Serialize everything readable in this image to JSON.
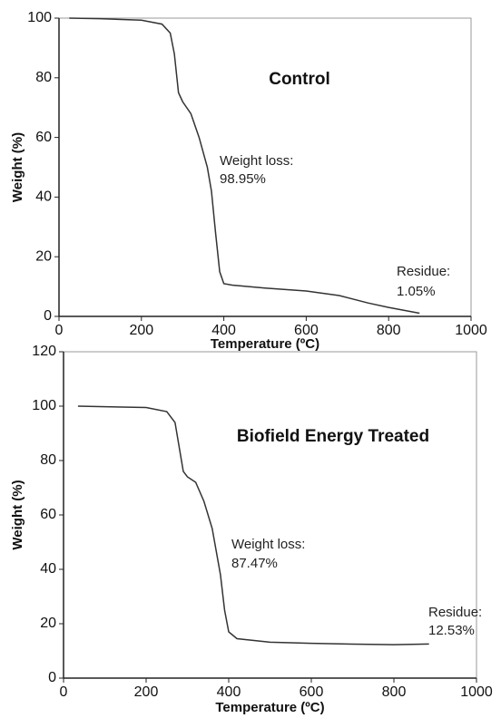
{
  "chart_data": [
    {
      "type": "line",
      "title": "Control",
      "x_label": "Temperature (ºC)",
      "y_label": "Weight (%)",
      "x": [
        25,
        100,
        200,
        250,
        270,
        280,
        290,
        300,
        320,
        340,
        360,
        370,
        380,
        390,
        400,
        420,
        500,
        600,
        680,
        750,
        800,
        875
      ],
      "series": [
        {
          "color": "#333333",
          "values": [
            100,
            99.8,
            99.3,
            98,
            95,
            88,
            75,
            72,
            68,
            60,
            50,
            42,
            28,
            15,
            11,
            10.5,
            9.5,
            8.5,
            7,
            4.5,
            3,
            1.05
          ]
        }
      ],
      "xlim": [
        0,
        1000
      ],
      "xticks": [
        0,
        200,
        400,
        600,
        800,
        1000
      ],
      "ylim": [
        0,
        100
      ],
      "yticks": [
        0,
        20,
        40,
        60,
        80,
        100
      ],
      "annotations": [
        "Weight loss:",
        "98.95%",
        "Residue:",
        "1.05%"
      ]
    },
    {
      "type": "line",
      "title": "Biofield Energy Treated",
      "x_label": "Temperature (ºC)",
      "y_label": "Weight (%)",
      "x": [
        35,
        100,
        200,
        250,
        270,
        280,
        290,
        300,
        320,
        340,
        360,
        380,
        390,
        400,
        420,
        500,
        600,
        700,
        800,
        885
      ],
      "series": [
        {
          "color": "#333333",
          "values": [
            100,
            99.8,
            99.5,
            98,
            94,
            85,
            76,
            74,
            72,
            65,
            55,
            38,
            25,
            17,
            14.5,
            13.2,
            12.8,
            12.5,
            12.3,
            12.53
          ]
        }
      ],
      "xlim": [
        0,
        1000
      ],
      "xticks": [
        0,
        200,
        400,
        600,
        800,
        1000
      ],
      "ylim": [
        0,
        120
      ],
      "yticks": [
        0,
        20,
        40,
        60,
        80,
        100,
        120
      ],
      "annotations": [
        "Weight loss:",
        "87.47%",
        "Residue:",
        "12.53%"
      ]
    }
  ]
}
